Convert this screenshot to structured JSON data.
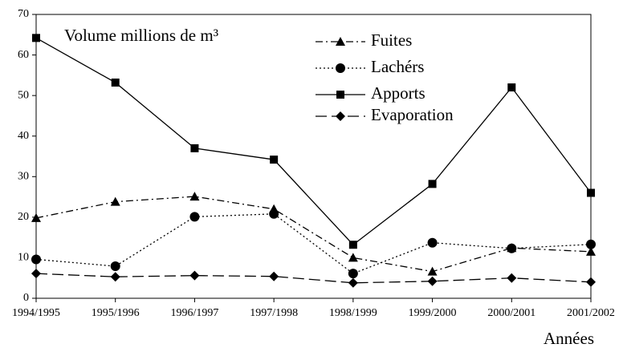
{
  "chart_data": {
    "type": "line",
    "title": "Volume millions de m³",
    "x_label": "Années",
    "categories": [
      "1994/1995",
      "1995/1996",
      "1996/1997",
      "1997/1998",
      "1998/1999",
      "1999/2000",
      "2000/2001",
      "2001/2002"
    ],
    "series": [
      {
        "name": "Fuites",
        "color": "#000000",
        "dash": "dashdot",
        "marker": "triangle",
        "values": [
          19.8,
          23.8,
          25.1,
          22,
          10,
          6.6,
          12.4,
          11.5
        ]
      },
      {
        "name": "Lachérs",
        "color": "#000000",
        "dash": "dotted",
        "marker": "circle",
        "values": [
          9.6,
          7.9,
          20.1,
          20.8,
          6.1,
          13.7,
          12.3,
          13.3
        ]
      },
      {
        "name": "Apports",
        "color": "#000000",
        "dash": "solid",
        "marker": "square",
        "values": [
          64.2,
          53.2,
          37,
          34.2,
          13.2,
          28.2,
          52,
          26
        ]
      },
      {
        "name": "Evaporation",
        "color": "#000000",
        "dash": "longdash",
        "marker": "diamond",
        "values": [
          6.1,
          5.3,
          5.6,
          5.4,
          3.8,
          4.2,
          5,
          4
        ]
      }
    ],
    "ylim": [
      0,
      70
    ],
    "yticks": [
      0,
      10,
      20,
      30,
      40,
      50,
      60,
      70
    ],
    "grid": false
  }
}
